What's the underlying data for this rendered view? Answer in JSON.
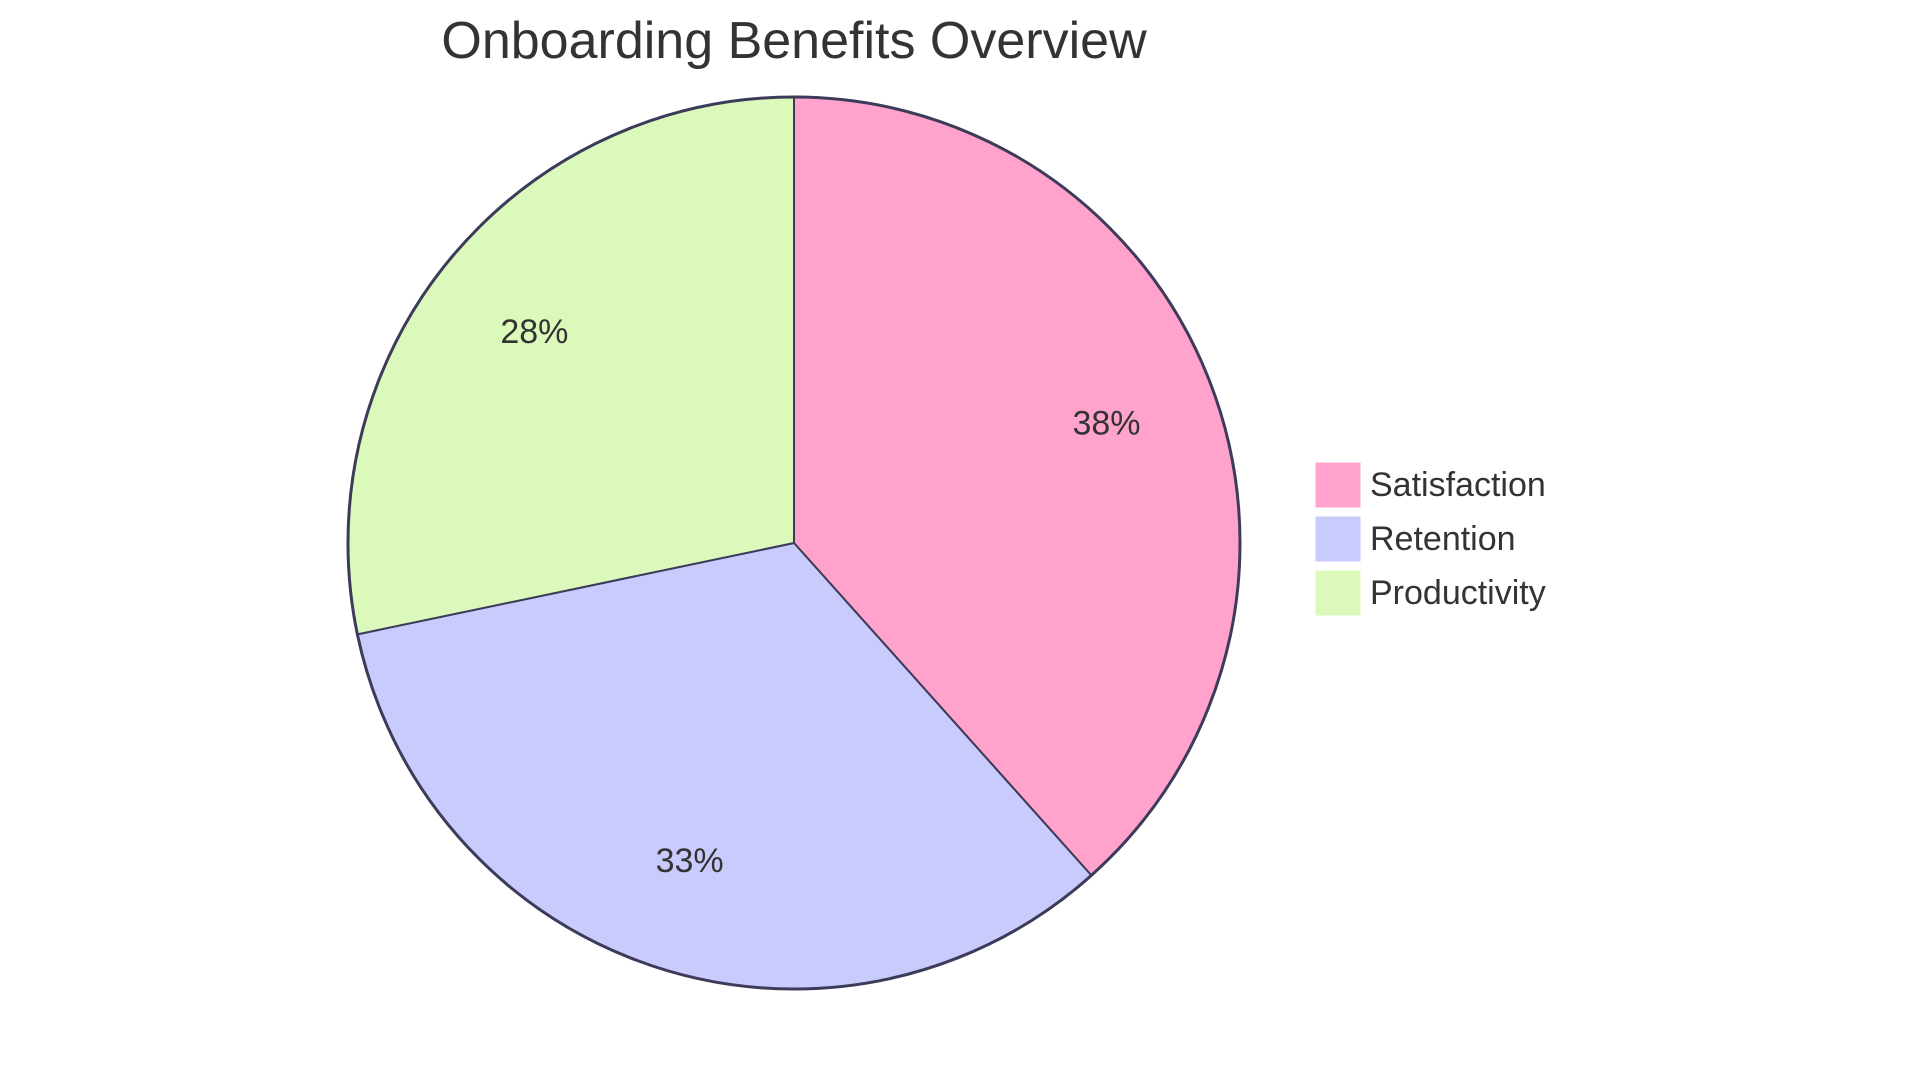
{
  "chart_data": {
    "type": "pie",
    "title": "Onboarding Benefits Overview",
    "slices": [
      {
        "name": "Satisfaction",
        "value": 38,
        "label": "38%",
        "color": "#FFA3CC"
      },
      {
        "name": "Retention",
        "value": 33,
        "label": "33%",
        "color": "#CACBFD"
      },
      {
        "name": "Productivity",
        "value": 28,
        "label": "28%",
        "color": "#DBF9BA"
      }
    ],
    "legend": {
      "placement": "right",
      "entries": [
        "Satisfaction",
        "Retention",
        "Productivity"
      ]
    },
    "stroke_color": "#3D3B5A"
  }
}
